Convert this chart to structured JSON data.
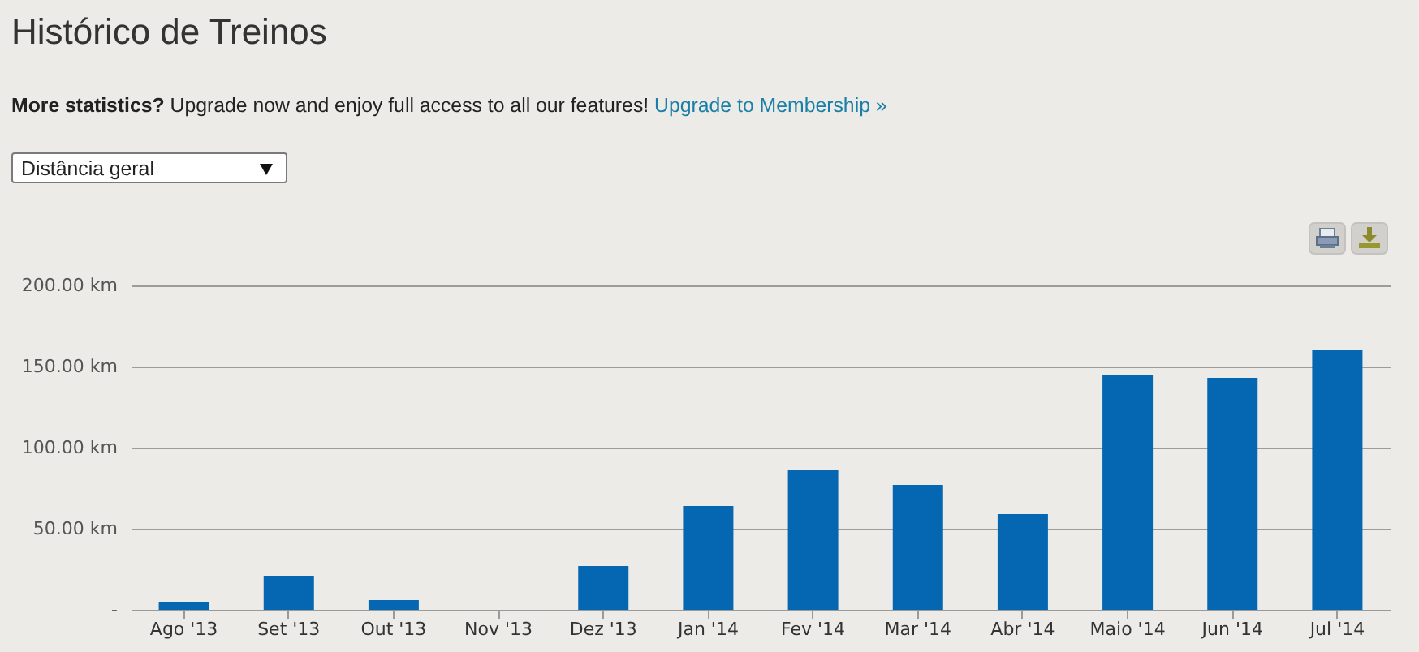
{
  "chart_data": {
    "type": "bar",
    "title": "Histórico de Treinos",
    "annotations": [
      "More statistics?",
      "Upgrade now and enjoy full access to all our features!",
      "Upgrade to Membership »",
      "Distância geral"
    ],
    "categories": [
      "Ago '13",
      "Set '13",
      "Out '13",
      "Nov '13",
      "Dez '13",
      "Jan '14",
      "Fev '14",
      "Mar '14",
      "Abr '14",
      "Maio '14",
      "Jun '14",
      "Jul '14"
    ],
    "values": [
      5,
      21,
      6,
      0,
      27,
      64,
      86,
      77,
      59,
      145,
      143,
      160
    ],
    "color": "#0567b1",
    "ylim": [
      0,
      200
    ],
    "yticks": [
      {
        "value": 0,
        "label": "-"
      },
      {
        "value": 50,
        "label": "50.00 km"
      },
      {
        "value": 100,
        "label": "100.00 km"
      },
      {
        "value": 150,
        "label": "150.00 km"
      },
      {
        "value": 200,
        "label": "200.00 km"
      }
    ],
    "grid": "y"
  }
}
